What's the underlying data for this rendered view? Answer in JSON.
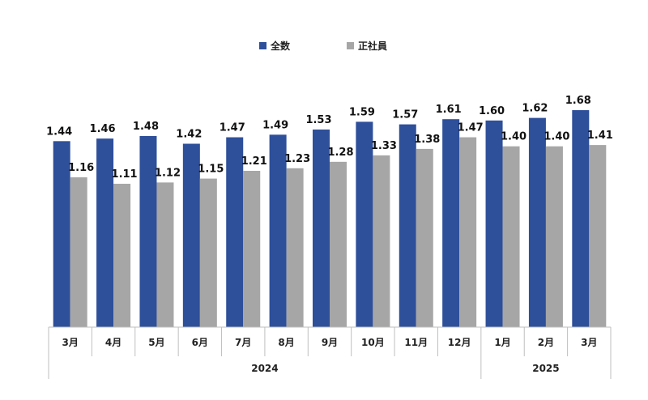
{
  "chart_data": {
    "type": "bar",
    "categories": [
      "3月",
      "4月",
      "5月",
      "6月",
      "7月",
      "8月",
      "9月",
      "10月",
      "11月",
      "12月",
      "1月",
      "2月",
      "3月"
    ],
    "years": [
      {
        "label": "2024",
        "start": 0,
        "end": 9
      },
      {
        "label": "2025",
        "start": 10,
        "end": 12
      }
    ],
    "series": [
      {
        "name": "全数",
        "color": "#2e4f9a",
        "values": [
          1.44,
          1.46,
          1.48,
          1.42,
          1.47,
          1.49,
          1.53,
          1.59,
          1.57,
          1.61,
          1.6,
          1.62,
          1.68
        ]
      },
      {
        "name": "正社員",
        "color": "#a6a6a6",
        "values": [
          1.16,
          1.11,
          1.12,
          1.15,
          1.21,
          1.23,
          1.28,
          1.33,
          1.38,
          1.47,
          1.4,
          1.4,
          1.41
        ]
      }
    ],
    "data_labels": [
      [
        "1.44",
        "1.46",
        "1.48",
        "1.42",
        "1.47",
        "1.49",
        "1.53",
        "1.59",
        "1.57",
        "1.61",
        "1.60",
        "1.62",
        "1.68"
      ],
      [
        "1.16",
        "1.11",
        "1.12",
        "1.15",
        "1.21",
        "1.23",
        "1.28",
        "1.33",
        "1.38",
        "1.47",
        "1.40",
        "1.40",
        "1.41"
      ]
    ],
    "ylim": [
      0,
      2.0
    ],
    "grid": false,
    "legend": "top-center"
  }
}
